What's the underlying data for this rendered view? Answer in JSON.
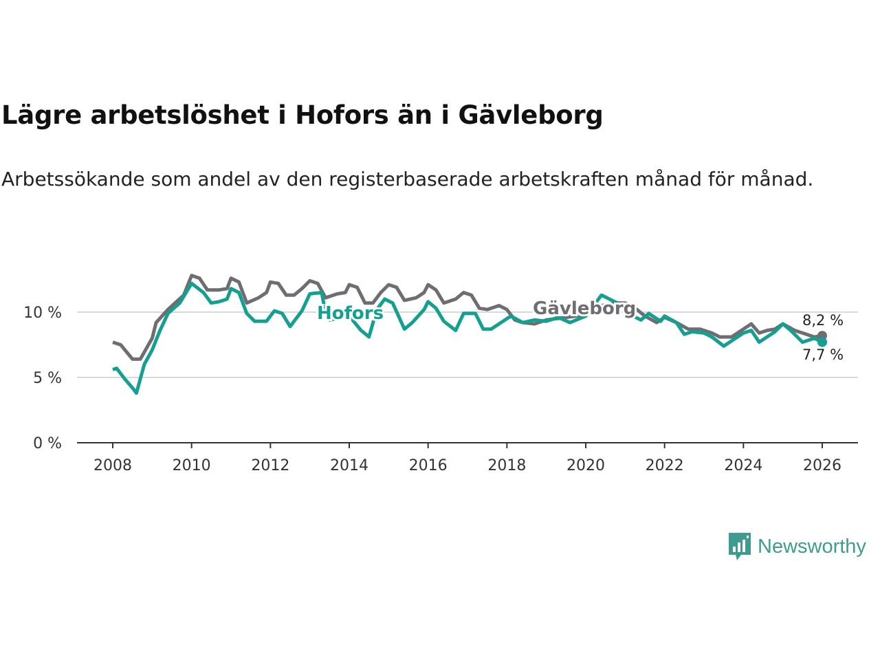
{
  "title": "Lägre arbetslöshet i Hofors än i Gävleborg",
  "subtitle": "Arbetssökande som andel av den registerbaserade arbetskraften månad för månad.",
  "logo_text": "Newsworthy",
  "colors": {
    "hofors": "#13a090",
    "gavleborg": "#6e6d72",
    "grid": "#d9d9d9",
    "axis": "#333333",
    "logo": "#3d9c8f"
  },
  "chart_data": {
    "type": "line",
    "title": "Lägre arbetslöshet i Hofors än i Gävleborg",
    "xlabel": "",
    "ylabel": "",
    "xlim": [
      2007.6,
      2026.9
    ],
    "ylim": [
      0,
      13
    ],
    "grid": true,
    "x_ticks": [
      2008,
      2010,
      2012,
      2014,
      2016,
      2018,
      2020,
      2022,
      2024,
      2026
    ],
    "x_tick_labels": [
      "2008",
      "2010",
      "2012",
      "2014",
      "2016",
      "2018",
      "2020",
      "2022",
      "2024",
      "2026"
    ],
    "y_ticks": [
      0,
      5,
      10
    ],
    "y_tick_labels": [
      "0 %",
      "5 %",
      "10 %"
    ],
    "series": [
      {
        "name": "Gävleborg",
        "color": "#6e6d72",
        "end_label": "8,2 %",
        "x": [
          2008.0,
          2008.2,
          2008.5,
          2008.7,
          2009.0,
          2009.1,
          2009.4,
          2009.8,
          2010.0,
          2010.2,
          2010.4,
          2010.7,
          2010.9,
          2011.0,
          2011.2,
          2011.4,
          2011.7,
          2011.9,
          2012.0,
          2012.2,
          2012.4,
          2012.6,
          2012.8,
          2013.0,
          2013.2,
          2013.4,
          2013.7,
          2013.9,
          2014.0,
          2014.2,
          2014.4,
          2014.6,
          2014.8,
          2015.0,
          2015.2,
          2015.4,
          2015.7,
          2015.9,
          2016.0,
          2016.2,
          2016.4,
          2016.7,
          2016.9,
          2017.1,
          2017.3,
          2017.5,
          2017.8,
          2018.0,
          2018.2,
          2018.4,
          2018.7,
          2019.0,
          2019.5,
          2020.0,
          2020.4,
          2020.8,
          2021.0,
          2021.3,
          2021.5,
          2021.8,
          2022.0,
          2022.3,
          2022.6,
          2022.9,
          2023.2,
          2023.4,
          2023.7,
          2024.0,
          2024.2,
          2024.4,
          2024.6,
          2024.8,
          2025.0,
          2025.3,
          2025.5,
          2025.8,
          2026.0
        ],
        "values": [
          7.7,
          7.5,
          6.4,
          6.4,
          8.0,
          9.2,
          10.2,
          11.3,
          12.8,
          12.6,
          11.7,
          11.7,
          11.8,
          12.6,
          12.3,
          10.7,
          11.1,
          11.5,
          12.3,
          12.2,
          11.3,
          11.3,
          11.8,
          12.4,
          12.2,
          11.1,
          11.4,
          11.5,
          12.1,
          11.9,
          10.7,
          10.7,
          11.5,
          12.1,
          11.9,
          10.9,
          11.1,
          11.5,
          12.1,
          11.7,
          10.7,
          11.0,
          11.5,
          11.3,
          10.3,
          10.2,
          10.5,
          10.2,
          9.4,
          9.2,
          9.1,
          9.4,
          9.6,
          9.8,
          10.5,
          10.7,
          10.7,
          10.2,
          9.7,
          9.2,
          9.6,
          9.2,
          8.7,
          8.7,
          8.4,
          8.1,
          8.1,
          8.7,
          9.1,
          8.4,
          8.6,
          8.7,
          9.1,
          8.6,
          8.4,
          8.1,
          8.2
        ]
      },
      {
        "name": "Hofors",
        "color": "#13a090",
        "end_label": "7,7 %",
        "x": [
          2008.0,
          2008.1,
          2008.3,
          2008.5,
          2008.6,
          2008.8,
          2009.0,
          2009.2,
          2009.4,
          2009.7,
          2010.0,
          2010.3,
          2010.5,
          2010.7,
          2010.9,
          2011.0,
          2011.2,
          2011.4,
          2011.6,
          2011.9,
          2012.1,
          2012.3,
          2012.5,
          2012.8,
          2013.0,
          2013.3,
          2013.4,
          2013.5,
          2014.0,
          2014.3,
          2014.5,
          2014.7,
          2014.9,
          2015.1,
          2015.4,
          2015.6,
          2015.9,
          2016.0,
          2016.2,
          2016.4,
          2016.7,
          2016.9,
          2017.2,
          2017.4,
          2017.6,
          2017.9,
          2018.1,
          2018.4,
          2018.7,
          2019.0,
          2019.3,
          2019.6,
          2020.0,
          2020.4,
          2020.8,
          2021.2,
          2021.4,
          2021.6,
          2021.9,
          2022.0,
          2022.3,
          2022.5,
          2022.7,
          2023.0,
          2023.2,
          2023.5,
          2023.8,
          2024.0,
          2024.2,
          2024.4,
          2024.6,
          2024.8,
          2025.0,
          2025.2,
          2025.5,
          2025.8,
          2026.0
        ],
        "values": [
          5.6,
          5.7,
          4.9,
          4.2,
          3.8,
          6.0,
          7.1,
          8.6,
          9.9,
          10.7,
          12.2,
          11.5,
          10.7,
          10.8,
          11.0,
          11.8,
          11.5,
          9.9,
          9.3,
          9.3,
          10.1,
          9.9,
          8.9,
          10.1,
          11.4,
          11.5,
          9.9,
          9.4,
          9.7,
          8.6,
          8.1,
          10.2,
          11.0,
          10.7,
          8.7,
          9.2,
          10.2,
          10.8,
          10.3,
          9.3,
          8.6,
          9.9,
          9.9,
          8.7,
          8.7,
          9.3,
          9.7,
          9.2,
          9.4,
          9.3,
          9.6,
          9.2,
          9.7,
          11.3,
          10.7,
          9.7,
          9.4,
          9.9,
          9.3,
          9.7,
          9.2,
          8.3,
          8.5,
          8.4,
          8.1,
          7.4,
          8.0,
          8.4,
          8.6,
          7.7,
          8.1,
          8.5,
          9.1,
          8.6,
          7.7,
          8.0,
          7.7
        ]
      }
    ]
  }
}
